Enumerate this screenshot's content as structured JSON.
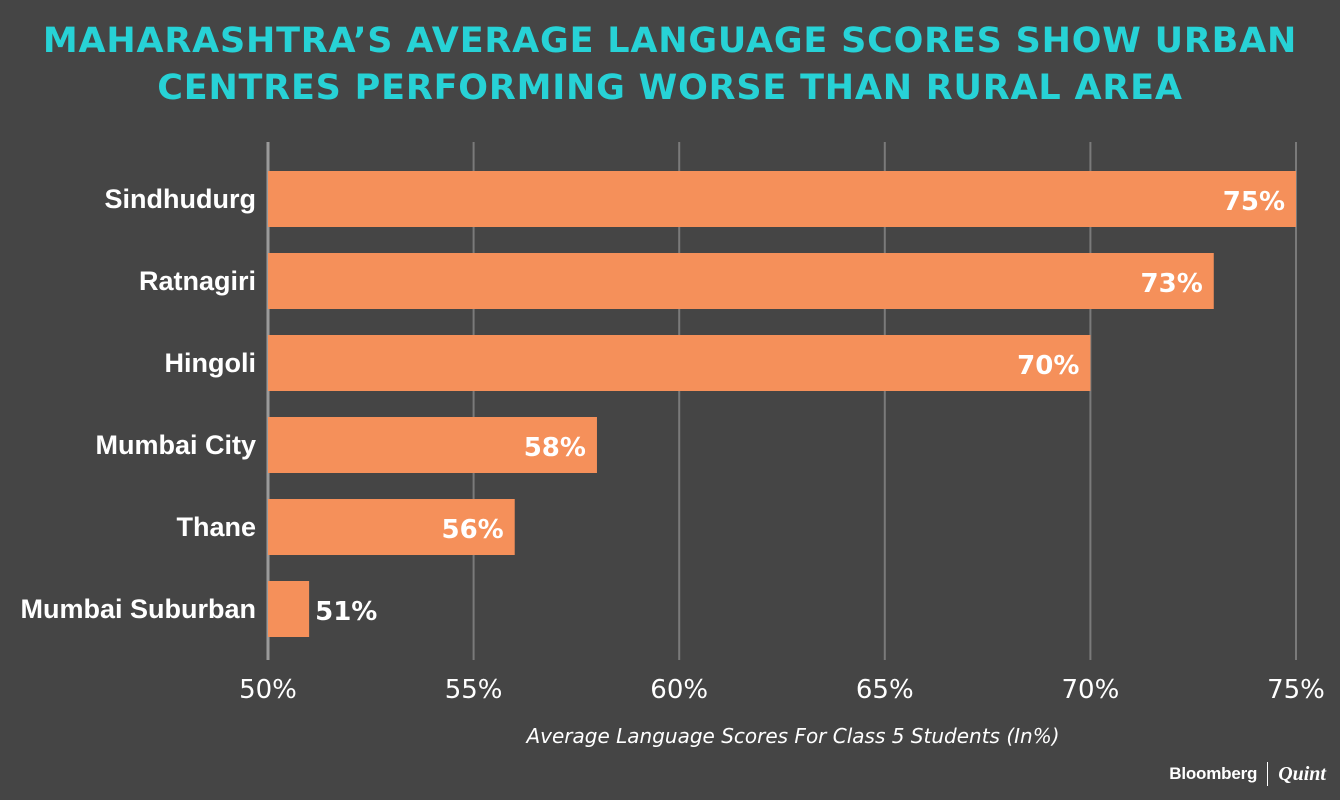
{
  "title": {
    "line1": "MAHARASHTRA’S AVERAGE LANGUAGE SCORES SHOW URBAN",
    "line2": "CENTRES PERFORMING WORSE THAN RURAL AREA"
  },
  "chart_data": {
    "type": "bar",
    "orientation": "horizontal",
    "categories": [
      "Sindhudurg",
      "Ratnagiri",
      "Hingoli",
      "Mumbai City",
      "Thane",
      "Mumbai Suburban"
    ],
    "values": [
      75,
      73,
      70,
      58,
      56,
      51
    ],
    "value_labels": [
      "75%",
      "73%",
      "70%",
      "58%",
      "56%",
      "51%"
    ],
    "xlim": [
      50,
      75
    ],
    "xticks": [
      50,
      55,
      60,
      65,
      70,
      75
    ],
    "xtick_labels": [
      "50%",
      "55%",
      "60%",
      "65%",
      "70%",
      "75%"
    ],
    "xlabel": "Average Language Scores For Class 5 Students (In%)",
    "grid": "vertical",
    "colors": {
      "background": "#454545",
      "bar": "#f5905a",
      "grid": "#7a7a7a",
      "title": "#27d2d6",
      "text": "#ffffff"
    }
  },
  "branding": {
    "left": "Bloomberg",
    "right": "Quint"
  }
}
